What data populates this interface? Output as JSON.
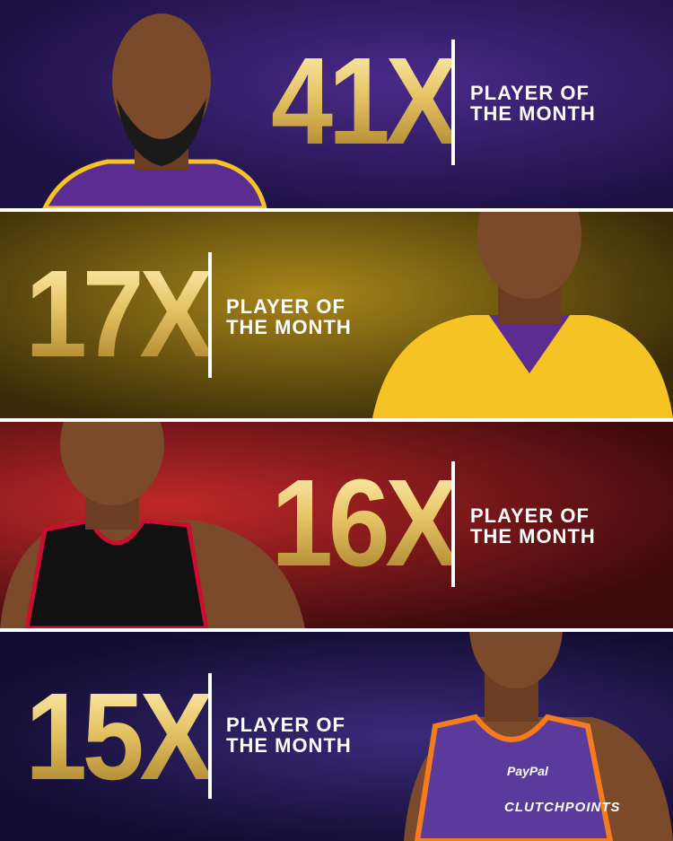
{
  "panels": [
    {
      "count": "41X",
      "label_line1": "PLAYER OF",
      "label_line2": "THE MONTH",
      "jersey_color": "#5b2d91"
    },
    {
      "count": "17X",
      "label_line1": "PLAYER OF",
      "label_line2": "THE MONTH",
      "jersey_color": "#f5c324"
    },
    {
      "count": "16X",
      "label_line1": "PLAYER OF",
      "label_line2": "THE MONTH",
      "jersey_color": "#111111"
    },
    {
      "count": "15X",
      "label_line1": "PLAYER OF",
      "label_line2": "THE MONTH",
      "jersey_color": "#5a3a9a"
    }
  ],
  "watermark": "CLUTCHPOINTS",
  "jersey_sponsor": "PayPal"
}
